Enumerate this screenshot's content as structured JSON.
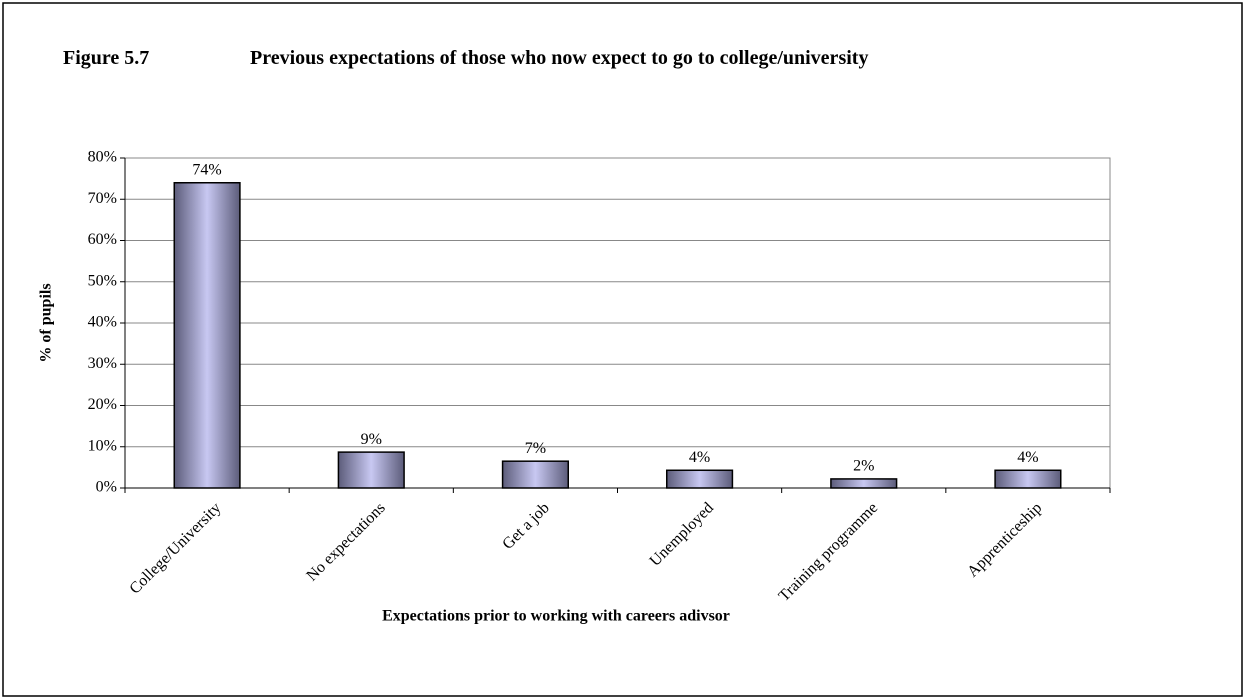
{
  "chart_data": {
    "type": "bar",
    "figure": "Figure 5.7",
    "title": "Previous expectations of those who now expect to go to college/university",
    "x_label": "Expectations prior to working with careers adivsor",
    "y_label": "% of pupils",
    "categories": [
      "College/University",
      "No expectations",
      "Get a job",
      "Unemployed",
      "Training programme",
      "Apprenticeship"
    ],
    "values": [
      74,
      8.7,
      6.5,
      4.3,
      2.2,
      4.3
    ],
    "value_labels": [
      "74%",
      "9%",
      "7%",
      "4%",
      "2%",
      "4%"
    ],
    "ylim": [
      0,
      80
    ],
    "yticks": [
      {
        "value": 0,
        "label": "0%"
      },
      {
        "value": 10,
        "label": "10%"
      },
      {
        "value": 20,
        "label": "20%"
      },
      {
        "value": 30,
        "label": "30%"
      },
      {
        "value": 40,
        "label": "40%"
      },
      {
        "value": 50,
        "label": "50%"
      },
      {
        "value": 60,
        "label": "60%"
      },
      {
        "value": 70,
        "label": "70%"
      },
      {
        "value": 80,
        "label": "80%"
      }
    ],
    "grid": true
  }
}
